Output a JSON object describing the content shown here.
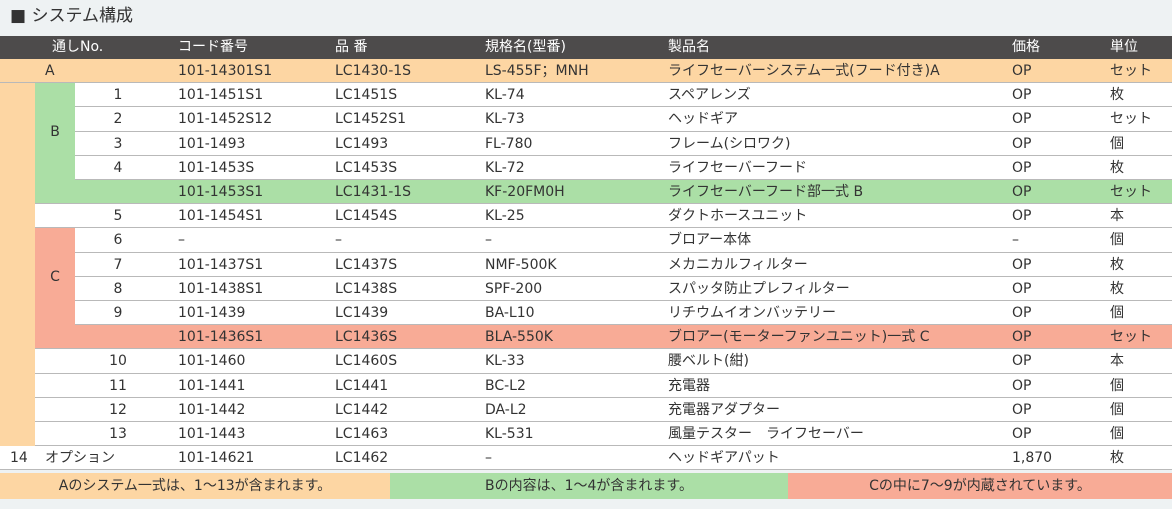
{
  "title": "■ システム構成",
  "header": [
    "通しNo.",
    "コード番号",
    "品 番",
    "規格名(型番)",
    "製品名",
    "価格",
    "単位"
  ],
  "groups": [
    {
      "label": "B"
    },
    {
      "label": "C"
    }
  ],
  "rows": [
    {
      "no": "A",
      "code": "101-14301S1",
      "part": "LC1430-1S",
      "spec": "LS-455F；MNH",
      "name": "ライフセーバーシステム一式(フード付き)A",
      "price": "OP",
      "unit": "セット"
    },
    {
      "no": "1",
      "code": "101-1451S1",
      "part": "LC1451S",
      "spec": "KL-74",
      "name": "スペアレンズ",
      "price": "OP",
      "unit": "枚"
    },
    {
      "no": "2",
      "code": "101-1452S12",
      "part": "LC1452S1",
      "spec": "KL-73",
      "name": "ヘッドギア",
      "price": "OP",
      "unit": "セット"
    },
    {
      "no": "3",
      "code": "101-1493",
      "part": "LC1493",
      "spec": "FL-780",
      "name": "フレーム(シロワク)",
      "price": "OP",
      "unit": "個"
    },
    {
      "no": "4",
      "code": "101-1453S",
      "part": "LC1453S",
      "spec": "KL-72",
      "name": "ライフセーバーフード",
      "price": "OP",
      "unit": "枚"
    },
    {
      "code": "101-1453S1",
      "part": "LC1431-1S",
      "spec": "KF-20FM0H",
      "name": "ライフセーバーフード部一式 B",
      "price": "OP",
      "unit": "セット"
    },
    {
      "no": "5",
      "code": "101-1454S1",
      "part": "LC1454S",
      "spec": "KL-25",
      "name": "ダクトホースユニット",
      "price": "OP",
      "unit": "本"
    },
    {
      "no": "6",
      "code": "–",
      "part": "–",
      "spec": "–",
      "name": "ブロアー本体",
      "price": "–",
      "unit": "個"
    },
    {
      "no": "7",
      "code": "101-1437S1",
      "part": "LC1437S",
      "spec": "NMF-500K",
      "name": "メカニカルフィルター",
      "price": "OP",
      "unit": "枚"
    },
    {
      "no": "8",
      "code": "101-1438S1",
      "part": "LC1438S",
      "spec": "SPF-200",
      "name": "スパッタ防止プレフィルター",
      "price": "OP",
      "unit": "枚"
    },
    {
      "no": "9",
      "code": "101-1439",
      "part": "LC1439",
      "spec": "BA-L10",
      "name": "リチウムイオンバッテリー",
      "price": "OP",
      "unit": "個"
    },
    {
      "code": "101-1436S1",
      "part": "LC1436S",
      "spec": "BLA-550K",
      "name": "ブロアー(モーターファンユニット)一式 C",
      "price": "OP",
      "unit": "セット"
    },
    {
      "no": "10",
      "code": "101-1460",
      "part": "LC1460S",
      "spec": "KL-33",
      "name": "腰ベルト(紺)",
      "price": "OP",
      "unit": "本"
    },
    {
      "no": "11",
      "code": "101-1441",
      "part": "LC1441",
      "spec": "BC-L2",
      "name": "充電器",
      "price": "OP",
      "unit": "個"
    },
    {
      "no": "12",
      "code": "101-1442",
      "part": "LC1442",
      "spec": "DA-L2",
      "name": "充電器アダプター",
      "price": "OP",
      "unit": "個"
    },
    {
      "no": "13",
      "code": "101-1443",
      "part": "LC1463",
      "spec": "KL-531",
      "name": "風量テスター　ライフセーバー",
      "price": "OP",
      "unit": "個"
    },
    {
      "no": "14",
      "label": "オプション",
      "code": "101-14621",
      "part": "LC1462",
      "spec": "–",
      "name": "ヘッドギアパット",
      "price": "1,870",
      "unit": "枚"
    }
  ],
  "notes": [
    "Aのシステム一式は、1～13が含まれます。",
    "Bの内容は、1～4が含まれます。",
    "Cの中に7～9が内蔵されています。"
  ]
}
